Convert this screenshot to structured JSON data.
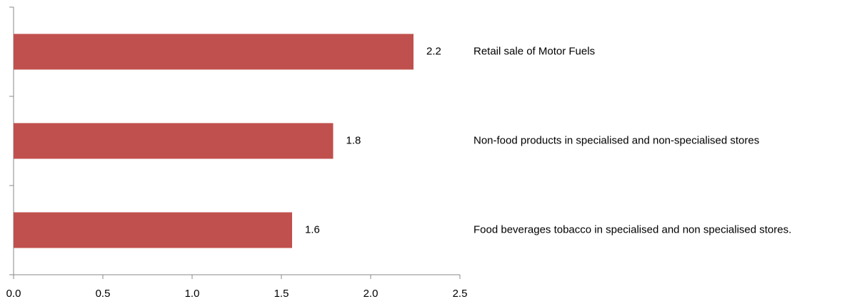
{
  "chart_data": {
    "type": "hbar",
    "categories": [
      "Retail sale of Motor Fuels",
      "Non-food products in specialised and non-specialised stores",
      "Food beverages tobacco in specialised and non specialised stores."
    ],
    "values": [
      2.24,
      1.79,
      1.56
    ],
    "value_labels": [
      "2.2",
      "1.8",
      "1.6"
    ],
    "color": "#c0504d",
    "xlim": [
      0,
      2.5
    ],
    "xticks": [
      {
        "value": 0,
        "label": "0.0"
      },
      0.5,
      {
        "value": 1,
        "label": "1.0"
      },
      1.5,
      {
        "value": 2,
        "label": "2.0"
      },
      2.5
    ]
  }
}
